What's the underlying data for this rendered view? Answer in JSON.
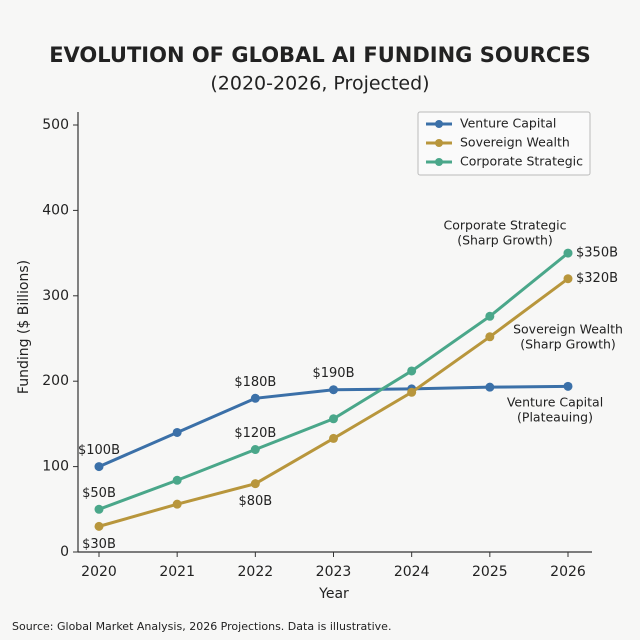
{
  "chart_data": {
    "type": "line",
    "title": "EVOLUTION OF GLOBAL AI FUNDING SOURCES",
    "subtitle": "(2020-2026, Projected)",
    "x_label": "Year",
    "y_label": "Funding ($ Billions)",
    "categories": [
      "2020",
      "2021",
      "2022",
      "2023",
      "2024",
      "2025",
      "2026"
    ],
    "series": [
      {
        "name": "Venture Capital",
        "color": "#3b70a8",
        "values": [
          100,
          140,
          180,
          190,
          191,
          193,
          194
        ],
        "value_labels": [
          "$100B",
          null,
          "$180B",
          "$190B",
          null,
          null,
          null
        ]
      },
      {
        "name": "Sovereign Wealth",
        "color": "#b8963c",
        "values": [
          30,
          56,
          80,
          133,
          187,
          252,
          320
        ],
        "value_labels": [
          "$30B",
          null,
          "$80B",
          null,
          null,
          null,
          "$320B"
        ]
      },
      {
        "name": "Corporate Strategic",
        "color": "#4aa78a",
        "values": [
          50,
          84,
          120,
          156,
          212,
          276,
          350
        ],
        "value_labels": [
          "$50B",
          null,
          "$120B",
          null,
          null,
          null,
          "$350B"
        ]
      }
    ],
    "annotations": [
      [
        "Corporate Strategic",
        "(Sharp Growth)"
      ],
      [
        "Sovereign Wealth",
        "(Sharp Growth)"
      ],
      [
        "Venture Capital",
        "(Plateauing)"
      ]
    ],
    "ylim": [
      0,
      500
    ],
    "yticks": [
      0,
      100,
      200,
      300,
      400,
      500
    ],
    "legend": "upper right",
    "source": "Source: Global Market Analysis, 2026 Projections. Data is illustrative."
  }
}
